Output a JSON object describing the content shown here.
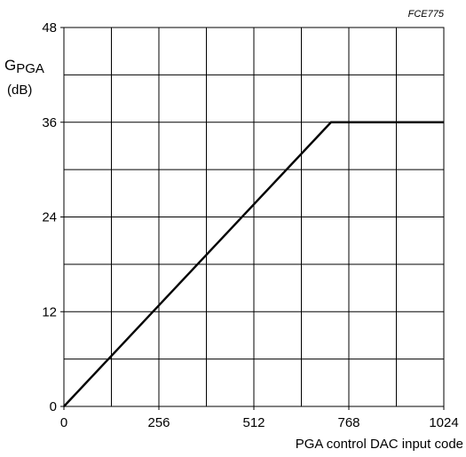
{
  "figure_code": "FCE775",
  "chart_data": {
    "type": "line",
    "title": "",
    "xlabel": "PGA control DAC input code",
    "ylabel_main": "G",
    "ylabel_sub": "PGA",
    "ylabel_unit": "(dB)",
    "xlim": [
      0,
      1024
    ],
    "ylim": [
      0,
      48
    ],
    "xticks": [
      0,
      256,
      512,
      768,
      1024
    ],
    "xtick_labels": [
      "0",
      "256",
      "512",
      "768",
      "1024"
    ],
    "yticks": [
      0,
      12,
      24,
      36,
      48
    ],
    "ytick_labels": [
      "0",
      "12",
      "24",
      "36",
      "48"
    ],
    "x_gridlines": [
      0,
      128,
      256,
      384,
      512,
      640,
      768,
      896,
      1024
    ],
    "y_gridlines": [
      0,
      6,
      12,
      18,
      24,
      30,
      36,
      42,
      48
    ],
    "grid": true,
    "series": [
      {
        "x": [
          0,
          720,
          1024
        ],
        "y": [
          0,
          36,
          36
        ]
      }
    ],
    "colors": {
      "line": "#000000",
      "grid": "#000000"
    }
  }
}
